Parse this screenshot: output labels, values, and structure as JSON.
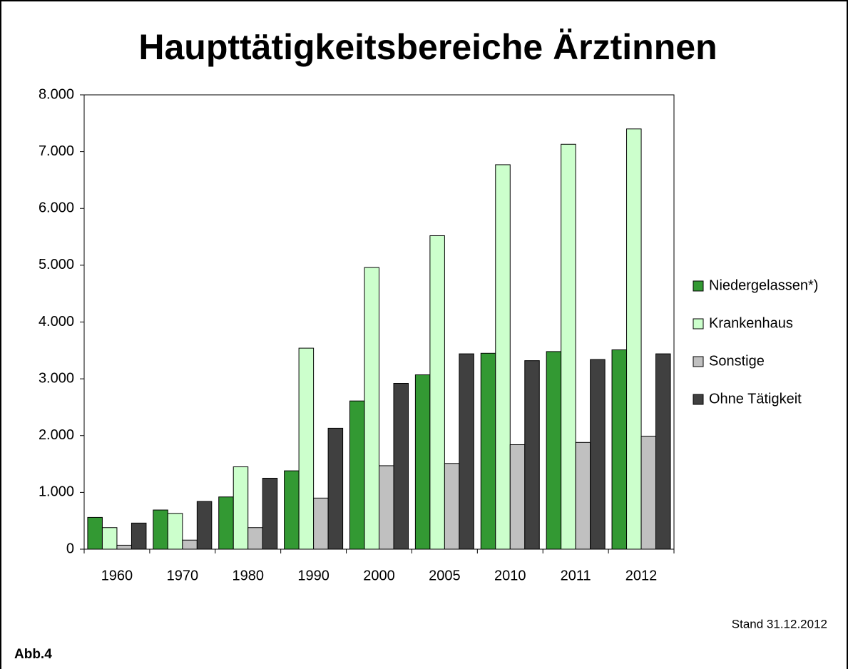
{
  "chart_data": {
    "type": "bar",
    "title": "Haupttätigkeitsbereiche Ärztinnen",
    "categories": [
      "1960",
      "1970",
      "1980",
      "1990",
      "2000",
      "2005",
      "2010",
      "2011",
      "2012"
    ],
    "series": [
      {
        "name": "Niedergelassen*)",
        "color": "#339933",
        "values": [
          560,
          690,
          920,
          1380,
          2610,
          3070,
          3450,
          3480,
          3510
        ]
      },
      {
        "name": "Krankenhaus",
        "color": "#ccffcc",
        "values": [
          380,
          630,
          1450,
          3540,
          4960,
          5520,
          6770,
          7130,
          7400
        ]
      },
      {
        "name": "Sonstige",
        "color": "#c0c0c0",
        "values": [
          70,
          160,
          380,
          900,
          1470,
          1510,
          1840,
          1880,
          1990
        ]
      },
      {
        "name": "Ohne Tätigkeit",
        "color": "#404040",
        "values": [
          460,
          840,
          1250,
          2130,
          2920,
          3440,
          3320,
          3340,
          3440
        ]
      }
    ],
    "ylim": [
      0,
      8000
    ],
    "yticks": [
      0,
      {
        "value": 1000,
        "label": "1.000"
      },
      {
        "value": 2000,
        "label": "2.000"
      },
      {
        "value": 3000,
        "label": "3.000"
      },
      {
        "value": 4000,
        "label": "4.000"
      },
      {
        "value": 5000,
        "label": "5.000"
      },
      {
        "value": 6000,
        "label": "6.000"
      },
      {
        "value": 7000,
        "label": "7.000"
      },
      {
        "value": 8000,
        "label": "8.000"
      }
    ],
    "legend": "right",
    "annotations": [
      "Stand 31.12.2012",
      "Abb.4"
    ]
  }
}
